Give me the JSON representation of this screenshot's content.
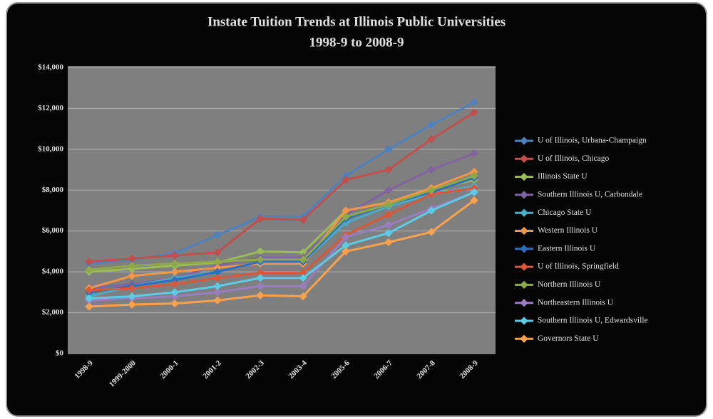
{
  "chart_data": {
    "type": "line",
    "title": "Instate Tuition Trends at Illinois Public Universities",
    "subtitle": "1998-9 to 2008-9",
    "categories": [
      "1998-9",
      "1999-2000",
      "2000-1",
      "2001-2",
      "2002-3",
      "2003-4",
      "2005-6",
      "2006-7",
      "2007-8",
      "2008-9"
    ],
    "ylim": [
      0,
      14000
    ],
    "yticks": [
      {
        "value": 0,
        "label": "$0"
      },
      {
        "value": 2000,
        "label": "$2,000"
      },
      {
        "value": 4000,
        "label": "$4,000"
      },
      {
        "value": 6000,
        "label": "$6,000"
      },
      {
        "value": 8000,
        "label": "$8,000"
      },
      {
        "value": 10000,
        "label": "$10,000"
      },
      {
        "value": 12000,
        "label": "$12,000"
      },
      {
        "value": 14000,
        "label": "$14,000"
      }
    ],
    "grid": true,
    "legend": "right",
    "series": [
      {
        "name": "U of Illinois, Urbana-Champaign",
        "color": "#4f81bd",
        "values": [
          4400,
          4600,
          4900,
          5800,
          6700,
          6700,
          8700,
          10000,
          11200,
          12300
        ]
      },
      {
        "name": "U of Illinois, Chicago",
        "color": "#c0504d",
        "values": [
          4500,
          4650,
          4800,
          4950,
          6600,
          6550,
          8500,
          9000,
          10500,
          11800
        ]
      },
      {
        "name": "Illinois State U",
        "color": "#9bbb59",
        "values": [
          4000,
          4150,
          4300,
          4450,
          5000,
          4950,
          7000,
          7400,
          8000,
          8500
        ]
      },
      {
        "name": "Southern Illinois U, Carbondale",
        "color": "#8064a2",
        "values": [
          3200,
          3400,
          3700,
          4300,
          4700,
          4700,
          6800,
          8000,
          9000,
          9800
        ]
      },
      {
        "name": "Chicago State U",
        "color": "#4bacc6",
        "values": [
          2800,
          3300,
          3700,
          4000,
          4500,
          4500,
          6400,
          7200,
          7800,
          8200
        ]
      },
      {
        "name": "Western Illinois U",
        "color": "#f79646",
        "values": [
          3200,
          3800,
          4000,
          4200,
          4400,
          4400,
          7000,
          7400,
          8100,
          8900
        ]
      },
      {
        "name": "Eastern Illinois U",
        "color": "#2c6fbf",
        "values": [
          3000,
          3300,
          3600,
          4000,
          4500,
          4500,
          6600,
          7300,
          7900,
          8600
        ]
      },
      {
        "name": "U of Illinois, Springfield",
        "color": "#d9583a",
        "values": [
          3100,
          3200,
          3400,
          3700,
          3950,
          3950,
          5800,
          6800,
          7800,
          8100
        ]
      },
      {
        "name": "Northern Illinois U",
        "color": "#8fa84a",
        "values": [
          4100,
          4300,
          4400,
          4500,
          4600,
          4600,
          6700,
          7300,
          8000,
          8700
        ]
      },
      {
        "name": "Northeastern Illinois U",
        "color": "#9a7cc0",
        "values": [
          2600,
          2700,
          2800,
          3000,
          3300,
          3300,
          5700,
          6300,
          7100,
          7900
        ]
      },
      {
        "name": "Southern Illinois U, Edwardsville",
        "color": "#5ccbe6",
        "values": [
          2700,
          2800,
          3000,
          3300,
          3700,
          3700,
          5300,
          5900,
          7000,
          7900
        ]
      },
      {
        "name": "Governors State U",
        "color": "#f9a24e",
        "values": [
          2300,
          2400,
          2450,
          2600,
          2850,
          2800,
          5000,
          5450,
          5950,
          7500
        ]
      }
    ]
  }
}
